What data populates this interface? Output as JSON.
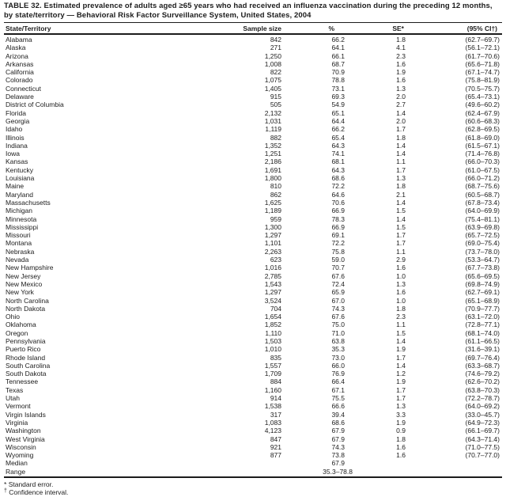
{
  "title": "TABLE 32. Estimated prevalence of adults aged ≥65 years who had received an influenza vaccination during the preceding 12 months, by state/territory — Behavioral Risk Factor Surveillance System, United States, 2004",
  "columns": {
    "state": "State/Territory",
    "sample": "Sample size",
    "pct": "%",
    "se": "SE*",
    "ci": "(95% CI†)"
  },
  "rows": [
    {
      "state": "Alabama",
      "sample": "842",
      "pct": "66.2",
      "se": "1.8",
      "ci": "(62.7–69.7)"
    },
    {
      "state": "Alaska",
      "sample": "271",
      "pct": "64.1",
      "se": "4.1",
      "ci": "(56.1–72.1)"
    },
    {
      "state": "Arizona",
      "sample": "1,250",
      "pct": "66.1",
      "se": "2.3",
      "ci": "(61.7–70.6)"
    },
    {
      "state": "Arkansas",
      "sample": "1,008",
      "pct": "68.7",
      "se": "1.6",
      "ci": "(65.6–71.8)"
    },
    {
      "state": "California",
      "sample": "822",
      "pct": "70.9",
      "se": "1.9",
      "ci": "(67.1–74.7)"
    },
    {
      "state": "Colorado",
      "sample": "1,075",
      "pct": "78.8",
      "se": "1.6",
      "ci": "(75.8–81.9)"
    },
    {
      "state": "Connecticut",
      "sample": "1,405",
      "pct": "73.1",
      "se": "1.3",
      "ci": "(70.5–75.7)"
    },
    {
      "state": "Delaware",
      "sample": "915",
      "pct": "69.3",
      "se": "2.0",
      "ci": "(65.4–73.1)"
    },
    {
      "state": "District of Columbia",
      "sample": "505",
      "pct": "54.9",
      "se": "2.7",
      "ci": "(49.6–60.2)"
    },
    {
      "state": "Florida",
      "sample": "2,132",
      "pct": "65.1",
      "se": "1.4",
      "ci": "(62.4–67.9)"
    },
    {
      "state": "Georgia",
      "sample": "1,031",
      "pct": "64.4",
      "se": "2.0",
      "ci": "(60.6–68.3)"
    },
    {
      "state": "Idaho",
      "sample": "1,119",
      "pct": "66.2",
      "se": "1.7",
      "ci": "(62.8–69.5)"
    },
    {
      "state": "Illinois",
      "sample": "882",
      "pct": "65.4",
      "se": "1.8",
      "ci": "(61.8–69.0)"
    },
    {
      "state": "Indiana",
      "sample": "1,352",
      "pct": "64.3",
      "se": "1.4",
      "ci": "(61.5–67.1)"
    },
    {
      "state": "Iowa",
      "sample": "1,251",
      "pct": "74.1",
      "se": "1.4",
      "ci": "(71.4–76.8)"
    },
    {
      "state": "Kansas",
      "sample": "2,186",
      "pct": "68.1",
      "se": "1.1",
      "ci": "(66.0–70.3)"
    },
    {
      "state": "Kentucky",
      "sample": "1,691",
      "pct": "64.3",
      "se": "1.7",
      "ci": "(61.0–67.5)"
    },
    {
      "state": "Louisiana",
      "sample": "1,800",
      "pct": "68.6",
      "se": "1.3",
      "ci": "(66.0–71.2)"
    },
    {
      "state": "Maine",
      "sample": "810",
      "pct": "72.2",
      "se": "1.8",
      "ci": "(68.7–75.6)"
    },
    {
      "state": "Maryland",
      "sample": "862",
      "pct": "64.6",
      "se": "2.1",
      "ci": "(60.5–68.7)"
    },
    {
      "state": "Massachusetts",
      "sample": "1,625",
      "pct": "70.6",
      "se": "1.4",
      "ci": "(67.8–73.4)"
    },
    {
      "state": "Michigan",
      "sample": "1,189",
      "pct": "66.9",
      "se": "1.5",
      "ci": "(64.0–69.9)"
    },
    {
      "state": "Minnesota",
      "sample": "959",
      "pct": "78.3",
      "se": "1.4",
      "ci": "(75.4–81.1)"
    },
    {
      "state": "Mississippi",
      "sample": "1,300",
      "pct": "66.9",
      "se": "1.5",
      "ci": "(63.9–69.8)"
    },
    {
      "state": "Missouri",
      "sample": "1,297",
      "pct": "69.1",
      "se": "1.7",
      "ci": "(65.7–72.5)"
    },
    {
      "state": "Montana",
      "sample": "1,101",
      "pct": "72.2",
      "se": "1.7",
      "ci": "(69.0–75.4)"
    },
    {
      "state": "Nebraska",
      "sample": "2,263",
      "pct": "75.8",
      "se": "1.1",
      "ci": "(73.7–78.0)"
    },
    {
      "state": "Nevada",
      "sample": "623",
      "pct": "59.0",
      "se": "2.9",
      "ci": "(53.3–64.7)"
    },
    {
      "state": "New Hampshire",
      "sample": "1,016",
      "pct": "70.7",
      "se": "1.6",
      "ci": "(67.7–73.8)"
    },
    {
      "state": "New Jersey",
      "sample": "2,785",
      "pct": "67.6",
      "se": "1.0",
      "ci": "(65.6–69.5)"
    },
    {
      "state": "New Mexico",
      "sample": "1,543",
      "pct": "72.4",
      "se": "1.3",
      "ci": "(69.8–74.9)"
    },
    {
      "state": "New York",
      "sample": "1,297",
      "pct": "65.9",
      "se": "1.6",
      "ci": "(62.7–69.1)"
    },
    {
      "state": "North Carolina",
      "sample": "3,524",
      "pct": "67.0",
      "se": "1.0",
      "ci": "(65.1–68.9)"
    },
    {
      "state": "North Dakota",
      "sample": "704",
      "pct": "74.3",
      "se": "1.8",
      "ci": "(70.9–77.7)"
    },
    {
      "state": "Ohio",
      "sample": "1,654",
      "pct": "67.6",
      "se": "2.3",
      "ci": "(63.1–72.0)"
    },
    {
      "state": "Oklahoma",
      "sample": "1,852",
      "pct": "75.0",
      "se": "1.1",
      "ci": "(72.8–77.1)"
    },
    {
      "state": "Oregon",
      "sample": "1,110",
      "pct": "71.0",
      "se": "1.5",
      "ci": "(68.1–74.0)"
    },
    {
      "state": "Pennsylvania",
      "sample": "1,503",
      "pct": "63.8",
      "se": "1.4",
      "ci": "(61.1–66.5)"
    },
    {
      "state": "Puerto Rico",
      "sample": "1,010",
      "pct": "35.3",
      "se": "1.9",
      "ci": "(31.6–39.1)"
    },
    {
      "state": "Rhode Island",
      "sample": "835",
      "pct": "73.0",
      "se": "1.7",
      "ci": "(69.7–76.4)"
    },
    {
      "state": "South Carolina",
      "sample": "1,557",
      "pct": "66.0",
      "se": "1.4",
      "ci": "(63.3–68.7)"
    },
    {
      "state": "South Dakota",
      "sample": "1,709",
      "pct": "76.9",
      "se": "1.2",
      "ci": "(74.6–79.2)"
    },
    {
      "state": "Tennessee",
      "sample": "884",
      "pct": "66.4",
      "se": "1.9",
      "ci": "(62.6–70.2)"
    },
    {
      "state": "Texas",
      "sample": "1,160",
      "pct": "67.1",
      "se": "1.7",
      "ci": "(63.8–70.3)"
    },
    {
      "state": "Utah",
      "sample": "914",
      "pct": "75.5",
      "se": "1.7",
      "ci": "(72.2–78.7)"
    },
    {
      "state": "Vermont",
      "sample": "1,538",
      "pct": "66.6",
      "se": "1.3",
      "ci": "(64.0–69.2)"
    },
    {
      "state": "Virgin Islands",
      "sample": "317",
      "pct": "39.4",
      "se": "3.3",
      "ci": "(33.0–45.7)"
    },
    {
      "state": "Virginia",
      "sample": "1,083",
      "pct": "68.6",
      "se": "1.9",
      "ci": "(64.9–72.3)"
    },
    {
      "state": "Washington",
      "sample": "4,123",
      "pct": "67.9",
      "se": "0.9",
      "ci": "(66.1–69.7)"
    },
    {
      "state": "West Virginia",
      "sample": "847",
      "pct": "67.9",
      "se": "1.8",
      "ci": "(64.3–71.4)"
    },
    {
      "state": "Wisconsin",
      "sample": "921",
      "pct": "74.3",
      "se": "1.6",
      "ci": "(71.0–77.5)"
    },
    {
      "state": "Wyoming",
      "sample": "877",
      "pct": "73.8",
      "se": "1.6",
      "ci": "(70.7–77.0)"
    }
  ],
  "summary": [
    {
      "state": "Median",
      "pct": "67.9"
    },
    {
      "state": "Range",
      "pct": "35.3–78.8"
    }
  ],
  "footnotes": [
    {
      "marker": "*",
      "text": "Standard error."
    },
    {
      "marker": "†",
      "text": "Confidence interval."
    }
  ]
}
